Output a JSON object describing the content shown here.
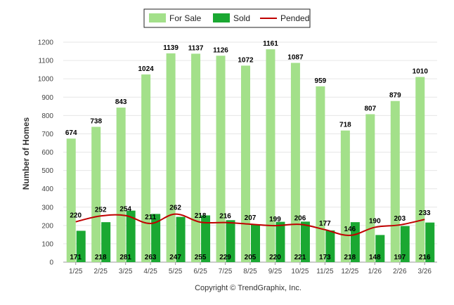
{
  "chart_data": {
    "type": "bar",
    "categories": [
      "1/25",
      "2/25",
      "3/25",
      "4/25",
      "5/25",
      "6/25",
      "7/25",
      "8/25",
      "9/25",
      "10/25",
      "11/25",
      "12/25",
      "1/26",
      "2/26",
      "3/26"
    ],
    "series": [
      {
        "name": "For Sale",
        "kind": "bar",
        "color": "#a3e08a",
        "values": [
          674,
          738,
          843,
          1024,
          1139,
          1137,
          1126,
          1072,
          1161,
          1087,
          959,
          718,
          807,
          879,
          1010
        ]
      },
      {
        "name": "Sold",
        "kind": "bar",
        "color": "#1aa832",
        "values": [
          171,
          218,
          281,
          263,
          247,
          255,
          229,
          205,
          220,
          221,
          173,
          218,
          148,
          197,
          216
        ]
      },
      {
        "name": "Pended",
        "kind": "line",
        "color": "#c00000",
        "values": [
          220,
          252,
          254,
          211,
          262,
          218,
          216,
          207,
          199,
          206,
          177,
          146,
          190,
          203,
          233
        ]
      }
    ],
    "xlabel": "",
    "ylabel": "Number of Homes",
    "ylim": [
      0,
      1200
    ],
    "yticks": [
      0,
      100,
      200,
      300,
      400,
      500,
      600,
      700,
      800,
      900,
      1000,
      1100,
      1200
    ],
    "grid": true,
    "legend_position": "top-center"
  },
  "footer": {
    "copyright": "Copyright © TrendGraphix, Inc."
  }
}
